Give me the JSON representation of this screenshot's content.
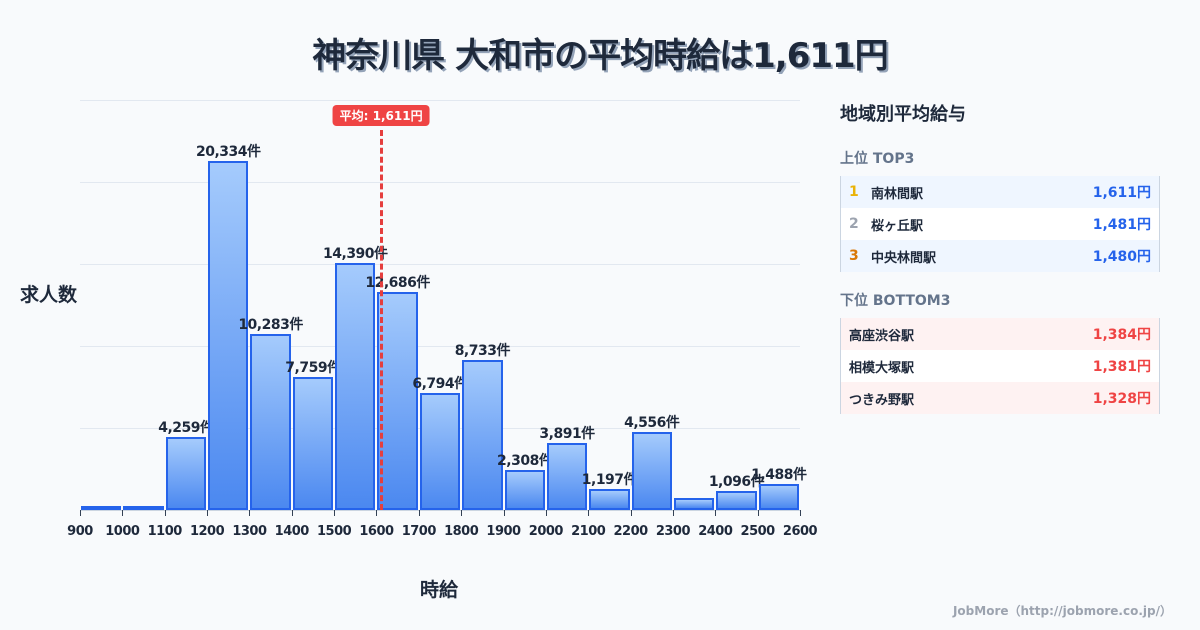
{
  "title": "神奈川県 大和市の平均時給は1,611円",
  "axes": {
    "ylabel": "求人数",
    "xlabel": "時給"
  },
  "average": {
    "label": "平均: 1,611円",
    "value": 1611,
    "color": "#ef4444"
  },
  "panel": {
    "title": "地域別平均給与",
    "top": {
      "title": "上位 TOP3",
      "items": [
        {
          "rank": "1",
          "name": "南林間駅",
          "value": "1,611円",
          "rank_color": "#eab308"
        },
        {
          "rank": "2",
          "name": "桜ヶ丘駅",
          "value": "1,481円",
          "rank_color": "#9ca3af"
        },
        {
          "rank": "3",
          "name": "中央林間駅",
          "value": "1,480円",
          "rank_color": "#d97706"
        }
      ]
    },
    "bottom": {
      "title": "下位 BOTTOM3",
      "items": [
        {
          "name": "高座渋谷駅",
          "value": "1,384円"
        },
        {
          "name": "相模大塚駅",
          "value": "1,381円"
        },
        {
          "name": "つきみ野駅",
          "value": "1,328円"
        }
      ]
    }
  },
  "footer": "JobMore（http://jobmore.co.jp/）",
  "chart_data": {
    "type": "bar",
    "title": "神奈川県 大和市の平均時給は1,611円",
    "xlabel": "時給",
    "ylabel": "求人数",
    "x_ticks": [
      900,
      1000,
      1100,
      1200,
      1300,
      1400,
      1500,
      1600,
      1700,
      1800,
      1900,
      2000,
      2100,
      2200,
      2300,
      2400,
      2500,
      2600
    ],
    "bins": [
      {
        "from": 900,
        "to": 1000,
        "value": 100,
        "label": ""
      },
      {
        "from": 1000,
        "to": 1100,
        "value": 150,
        "label": ""
      },
      {
        "from": 1100,
        "to": 1200,
        "value": 4259,
        "label": "4,259件"
      },
      {
        "from": 1200,
        "to": 1300,
        "value": 20334,
        "label": "20,334件"
      },
      {
        "from": 1300,
        "to": 1400,
        "value": 10283,
        "label": "10,283件"
      },
      {
        "from": 1400,
        "to": 1500,
        "value": 7759,
        "label": "7,759件"
      },
      {
        "from": 1500,
        "to": 1600,
        "value": 14390,
        "label": "14,390件"
      },
      {
        "from": 1600,
        "to": 1700,
        "value": 12686,
        "label": "12,686件"
      },
      {
        "from": 1700,
        "to": 1800,
        "value": 6794,
        "label": "6,794件"
      },
      {
        "from": 1800,
        "to": 1900,
        "value": 8733,
        "label": "8,733件"
      },
      {
        "from": 1900,
        "to": 2000,
        "value": 2308,
        "label": "2,308件"
      },
      {
        "from": 2000,
        "to": 2100,
        "value": 3891,
        "label": "3,891件"
      },
      {
        "from": 2100,
        "to": 2200,
        "value": 1197,
        "label": "1,197件"
      },
      {
        "from": 2200,
        "to": 2300,
        "value": 4556,
        "label": "4,556件"
      },
      {
        "from": 2300,
        "to": 2400,
        "value": 700,
        "label": ""
      },
      {
        "from": 2400,
        "to": 2500,
        "value": 1096,
        "label": "1,096件"
      },
      {
        "from": 2500,
        "to": 2600,
        "value": 1488,
        "label": "1,488件"
      }
    ],
    "average_line": 1611,
    "xlim": [
      900,
      2600
    ],
    "ylim": [
      0,
      23900
    ],
    "grid": true,
    "legend": null
  }
}
